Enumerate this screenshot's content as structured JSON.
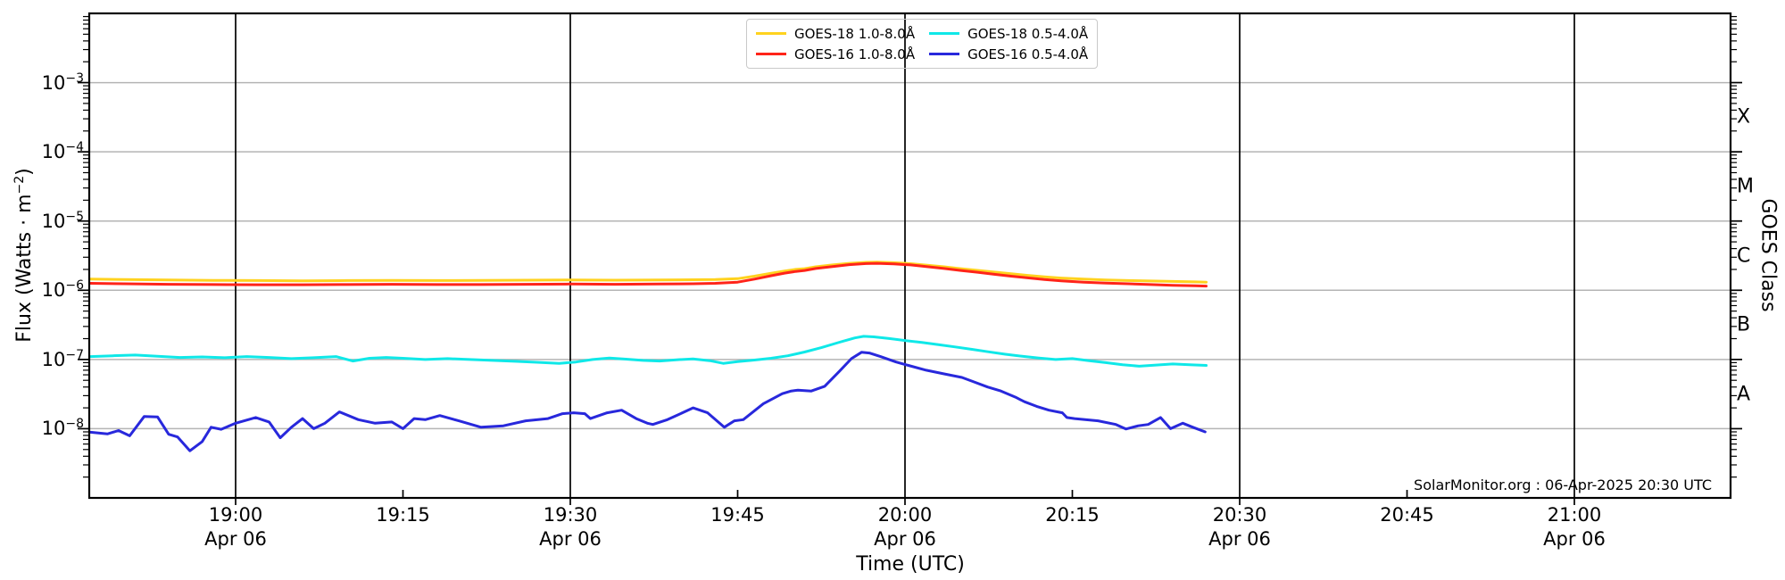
{
  "figure": {
    "watermark": "SolarMonitor.org : 06-Apr-2025 20:30 UTC"
  },
  "axes": {
    "x": {
      "label": "Time (UTC)",
      "ticks": [
        {
          "label": "19:00",
          "sub": "Apr 06",
          "t": 0
        },
        {
          "label": "19:15",
          "sub": "",
          "t": 15
        },
        {
          "label": "19:30",
          "sub": "Apr 06",
          "t": 30
        },
        {
          "label": "19:45",
          "sub": "",
          "t": 45
        },
        {
          "label": "20:00",
          "sub": "Apr 06",
          "t": 60
        },
        {
          "label": "20:15",
          "sub": "",
          "t": 75
        },
        {
          "label": "20:30",
          "sub": "Apr 06",
          "t": 90
        },
        {
          "label": "20:45",
          "sub": "",
          "t": 105
        },
        {
          "label": "21:00",
          "sub": "Apr 06",
          "t": 120
        }
      ],
      "gridline_times": [
        0,
        30,
        60,
        90,
        120
      ],
      "inner_tick_times": [
        15,
        45,
        75,
        105
      ]
    },
    "y": {
      "label_pre": "Flux (Watts · m",
      "label_sup": "−2",
      "label_post": ")",
      "ticks": [
        {
          "base": "10",
          "exp": "−3",
          "decade": -3
        },
        {
          "base": "10",
          "exp": "−4",
          "decade": -4
        },
        {
          "base": "10",
          "exp": "−5",
          "decade": -5
        },
        {
          "base": "10",
          "exp": "−6",
          "decade": -6
        },
        {
          "base": "10",
          "exp": "−7",
          "decade": -7
        },
        {
          "base": "10",
          "exp": "−8",
          "decade": -8
        }
      ],
      "right_label": "GOES Class",
      "classes": [
        {
          "label": "X",
          "mid_log": -3.5
        },
        {
          "label": "M",
          "mid_log": -4.5
        },
        {
          "label": "C",
          "mid_log": -5.5
        },
        {
          "label": "B",
          "mid_log": -6.5
        },
        {
          "label": "A",
          "mid_log": -7.5
        }
      ]
    }
  },
  "colors": {
    "h_grid": "#b4b4b4",
    "v_grid": "#000000",
    "spine": "#000000"
  },
  "chart_data": {
    "type": "line",
    "title": "",
    "xlabel": "Time (UTC)",
    "ylabel": "Flux (Watts · m^-2)",
    "right_ylabel": "GOES Class",
    "yscale": "log",
    "ylim": [
      1e-09,
      0.01
    ],
    "x_unit": "minutes relative to 19:00 UTC, Apr 06 2025",
    "x_range_minutes": [
      -13.1,
      87
    ],
    "grid": "horizontal gray each decade; vertical black every 30 min",
    "legend_position": "top-center",
    "series": [
      {
        "name": "GOES-18 1.0-8.0Å",
        "color": "#FFD21E",
        "points": [
          [
            -13,
            1.45e-06
          ],
          [
            -10,
            1.43e-06
          ],
          [
            -6,
            1.41e-06
          ],
          [
            -2,
            1.39e-06
          ],
          [
            2,
            1.38e-06
          ],
          [
            6,
            1.37e-06
          ],
          [
            10,
            1.38e-06
          ],
          [
            14,
            1.39e-06
          ],
          [
            18,
            1.38e-06
          ],
          [
            22,
            1.39e-06
          ],
          [
            26,
            1.4e-06
          ],
          [
            30,
            1.41e-06
          ],
          [
            34,
            1.4e-06
          ],
          [
            38,
            1.41e-06
          ],
          [
            41,
            1.42e-06
          ],
          [
            43,
            1.43e-06
          ],
          [
            45,
            1.47e-06
          ],
          [
            46.5,
            1.6e-06
          ],
          [
            48,
            1.76e-06
          ],
          [
            49.2,
            1.9e-06
          ],
          [
            50.2,
            2e-06
          ],
          [
            51,
            2.05e-06
          ],
          [
            52,
            2.18e-06
          ],
          [
            53.5,
            2.32e-06
          ],
          [
            55,
            2.45e-06
          ],
          [
            56.5,
            2.53e-06
          ],
          [
            57.5,
            2.55e-06
          ],
          [
            59,
            2.5e-06
          ],
          [
            60.5,
            2.42e-06
          ],
          [
            62,
            2.3e-06
          ],
          [
            63.5,
            2.18e-06
          ],
          [
            65,
            2.05e-06
          ],
          [
            66.5,
            1.94e-06
          ],
          [
            68,
            1.83e-06
          ],
          [
            69.5,
            1.73e-06
          ],
          [
            71,
            1.64e-06
          ],
          [
            72.5,
            1.56e-06
          ],
          [
            74,
            1.5e-06
          ],
          [
            76,
            1.45e-06
          ],
          [
            78,
            1.41e-06
          ],
          [
            80,
            1.38e-06
          ],
          [
            82,
            1.36e-06
          ],
          [
            84,
            1.34e-06
          ],
          [
            86,
            1.32e-06
          ],
          [
            87,
            1.31e-06
          ]
        ]
      },
      {
        "name": "GOES-16 1.0-8.0Å",
        "color": "#FF2419",
        "points": [
          [
            -13,
            1.26e-06
          ],
          [
            -10,
            1.24e-06
          ],
          [
            -6,
            1.22e-06
          ],
          [
            -2,
            1.21e-06
          ],
          [
            2,
            1.2e-06
          ],
          [
            6,
            1.2e-06
          ],
          [
            10,
            1.21e-06
          ],
          [
            14,
            1.22e-06
          ],
          [
            18,
            1.21e-06
          ],
          [
            22,
            1.21e-06
          ],
          [
            26,
            1.22e-06
          ],
          [
            30,
            1.23e-06
          ],
          [
            34,
            1.22e-06
          ],
          [
            38,
            1.23e-06
          ],
          [
            41,
            1.24e-06
          ],
          [
            43,
            1.26e-06
          ],
          [
            45,
            1.31e-06
          ],
          [
            46.5,
            1.45e-06
          ],
          [
            48,
            1.62e-06
          ],
          [
            49.2,
            1.77e-06
          ],
          [
            50.2,
            1.87e-06
          ],
          [
            51,
            1.93e-06
          ],
          [
            52,
            2.06e-06
          ],
          [
            53.5,
            2.2e-06
          ],
          [
            55,
            2.34e-06
          ],
          [
            56.5,
            2.43e-06
          ],
          [
            57.5,
            2.45e-06
          ],
          [
            59,
            2.4e-06
          ],
          [
            60.5,
            2.32e-06
          ],
          [
            62,
            2.19e-06
          ],
          [
            63.5,
            2.06e-06
          ],
          [
            65,
            1.93e-06
          ],
          [
            66.5,
            1.82e-06
          ],
          [
            68,
            1.7e-06
          ],
          [
            69.5,
            1.6e-06
          ],
          [
            71,
            1.51e-06
          ],
          [
            72.5,
            1.43e-06
          ],
          [
            74,
            1.37e-06
          ],
          [
            76,
            1.31e-06
          ],
          [
            78,
            1.27e-06
          ],
          [
            80,
            1.24e-06
          ],
          [
            82,
            1.21e-06
          ],
          [
            84,
            1.18e-06
          ],
          [
            86,
            1.16e-06
          ],
          [
            87,
            1.15e-06
          ]
        ]
      },
      {
        "name": "GOES-18 0.5-4.0Å",
        "color": "#0FE8E8",
        "points": [
          [
            -13,
            1.1e-07
          ],
          [
            -11,
            1.13e-07
          ],
          [
            -9,
            1.16e-07
          ],
          [
            -7,
            1.11e-07
          ],
          [
            -5,
            1.07e-07
          ],
          [
            -3,
            1.09e-07
          ],
          [
            -1,
            1.06e-07
          ],
          [
            1,
            1.1e-07
          ],
          [
            3,
            1.07e-07
          ],
          [
            5,
            1.03e-07
          ],
          [
            7,
            1.06e-07
          ],
          [
            9,
            1.1e-07
          ],
          [
            10.5,
            9.5e-08
          ],
          [
            12,
            1.04e-07
          ],
          [
            13.5,
            1.07e-07
          ],
          [
            15,
            1.04e-07
          ],
          [
            17,
            1e-07
          ],
          [
            19,
            1.03e-07
          ],
          [
            21,
            1e-07
          ],
          [
            23,
            9.7e-08
          ],
          [
            25,
            9.4e-08
          ],
          [
            27,
            9.1e-08
          ],
          [
            29,
            8.8e-08
          ],
          [
            30.5,
            9.2e-08
          ],
          [
            32,
            1e-07
          ],
          [
            33.5,
            1.05e-07
          ],
          [
            35,
            1.01e-07
          ],
          [
            36.5,
            9.7e-08
          ],
          [
            38,
            9.5e-08
          ],
          [
            39.5,
            9.9e-08
          ],
          [
            41,
            1.02e-07
          ],
          [
            42.5,
            9.6e-08
          ],
          [
            43.7,
            8.8e-08
          ],
          [
            45,
            9.3e-08
          ],
          [
            46.5,
            9.8e-08
          ],
          [
            48,
            1.04e-07
          ],
          [
            49.5,
            1.13e-07
          ],
          [
            51,
            1.28e-07
          ],
          [
            52.5,
            1.48e-07
          ],
          [
            54,
            1.75e-07
          ],
          [
            55.5,
            2.05e-07
          ],
          [
            56.3,
            2.16e-07
          ],
          [
            57.2,
            2.12e-07
          ],
          [
            58.5,
            2.02e-07
          ],
          [
            60,
            1.88e-07
          ],
          [
            61.5,
            1.76e-07
          ],
          [
            63,
            1.64e-07
          ],
          [
            64.5,
            1.52e-07
          ],
          [
            66,
            1.4e-07
          ],
          [
            67.5,
            1.29e-07
          ],
          [
            69,
            1.19e-07
          ],
          [
            70.5,
            1.11e-07
          ],
          [
            72,
            1.05e-07
          ],
          [
            73.5,
            1e-07
          ],
          [
            75,
            1.03e-07
          ],
          [
            76.5,
            9.6e-08
          ],
          [
            78,
            9e-08
          ],
          [
            79.5,
            8.4e-08
          ],
          [
            81,
            8e-08
          ],
          [
            82.5,
            8.3e-08
          ],
          [
            84,
            8.6e-08
          ],
          [
            85.5,
            8.4e-08
          ],
          [
            87,
            8.2e-08
          ]
        ]
      },
      {
        "name": "GOES-16 0.5-4.0Å",
        "color": "#2828DC",
        "points": [
          [
            -13,
            8.9e-09
          ],
          [
            -11.5,
            8.4e-09
          ],
          [
            -10.5,
            9.4e-09
          ],
          [
            -9.5,
            7.9e-09
          ],
          [
            -8.2,
            1.5e-08
          ],
          [
            -7,
            1.48e-08
          ],
          [
            -6,
            8.3e-09
          ],
          [
            -5.2,
            7.6e-09
          ],
          [
            -4.1,
            4.8e-09
          ],
          [
            -3,
            6.5e-09
          ],
          [
            -2.2,
            1.05e-08
          ],
          [
            -1.3,
            9.8e-09
          ],
          [
            0,
            1.2e-08
          ],
          [
            1.8,
            1.45e-08
          ],
          [
            3,
            1.25e-08
          ],
          [
            4,
            7.4e-09
          ],
          [
            5,
            1.05e-08
          ],
          [
            6,
            1.4e-08
          ],
          [
            7,
            1e-08
          ],
          [
            8,
            1.2e-08
          ],
          [
            9.3,
            1.75e-08
          ],
          [
            11,
            1.35e-08
          ],
          [
            12.5,
            1.2e-08
          ],
          [
            14,
            1.25e-08
          ],
          [
            15,
            1e-08
          ],
          [
            16,
            1.4e-08
          ],
          [
            17,
            1.35e-08
          ],
          [
            18.3,
            1.55e-08
          ],
          [
            20,
            1.3e-08
          ],
          [
            22,
            1.05e-08
          ],
          [
            24,
            1.1e-08
          ],
          [
            26,
            1.3e-08
          ],
          [
            28,
            1.4e-08
          ],
          [
            29.3,
            1.65e-08
          ],
          [
            30.3,
            1.7e-08
          ],
          [
            31.3,
            1.65e-08
          ],
          [
            31.8,
            1.4e-08
          ],
          [
            33.3,
            1.7e-08
          ],
          [
            34.6,
            1.85e-08
          ],
          [
            35.9,
            1.4e-08
          ],
          [
            36.9,
            1.2e-08
          ],
          [
            37.4,
            1.15e-08
          ],
          [
            38.7,
            1.35e-08
          ],
          [
            39.7,
            1.6e-08
          ],
          [
            41,
            2e-08
          ],
          [
            42.3,
            1.7e-08
          ],
          [
            43.8,
            1.05e-08
          ],
          [
            44.7,
            1.3e-08
          ],
          [
            45.5,
            1.35e-08
          ],
          [
            47.3,
            2.3e-08
          ],
          [
            49,
            3.2e-08
          ],
          [
            49.8,
            3.5e-08
          ],
          [
            50.4,
            3.6e-08
          ],
          [
            51.6,
            3.5e-08
          ],
          [
            52.8,
            4.1e-08
          ],
          [
            54.1,
            6.7e-08
          ],
          [
            55.2,
            1.03e-07
          ],
          [
            56.1,
            1.27e-07
          ],
          [
            56.8,
            1.24e-07
          ],
          [
            57.8,
            1.1e-07
          ],
          [
            59.2,
            9.2e-08
          ],
          [
            60.3,
            8.2e-08
          ],
          [
            61.9,
            7e-08
          ],
          [
            63.5,
            6.2e-08
          ],
          [
            65.1,
            5.5e-08
          ],
          [
            66.1,
            4.8e-08
          ],
          [
            67.4,
            4e-08
          ],
          [
            68.6,
            3.5e-08
          ],
          [
            69.9,
            2.85e-08
          ],
          [
            70.7,
            2.45e-08
          ],
          [
            71.8,
            2.1e-08
          ],
          [
            72.9,
            1.85e-08
          ],
          [
            74.1,
            1.7e-08
          ],
          [
            74.5,
            1.45e-08
          ],
          [
            75.2,
            1.4e-08
          ],
          [
            77.3,
            1.3e-08
          ],
          [
            78.9,
            1.15e-08
          ],
          [
            79.8,
            9.9e-09
          ],
          [
            80.9,
            1.1e-08
          ],
          [
            81.8,
            1.15e-08
          ],
          [
            82.9,
            1.45e-08
          ],
          [
            83.8,
            1e-08
          ],
          [
            84.9,
            1.2e-08
          ],
          [
            85.8,
            1.05e-08
          ],
          [
            86.9,
            9e-09
          ]
        ]
      }
    ]
  }
}
